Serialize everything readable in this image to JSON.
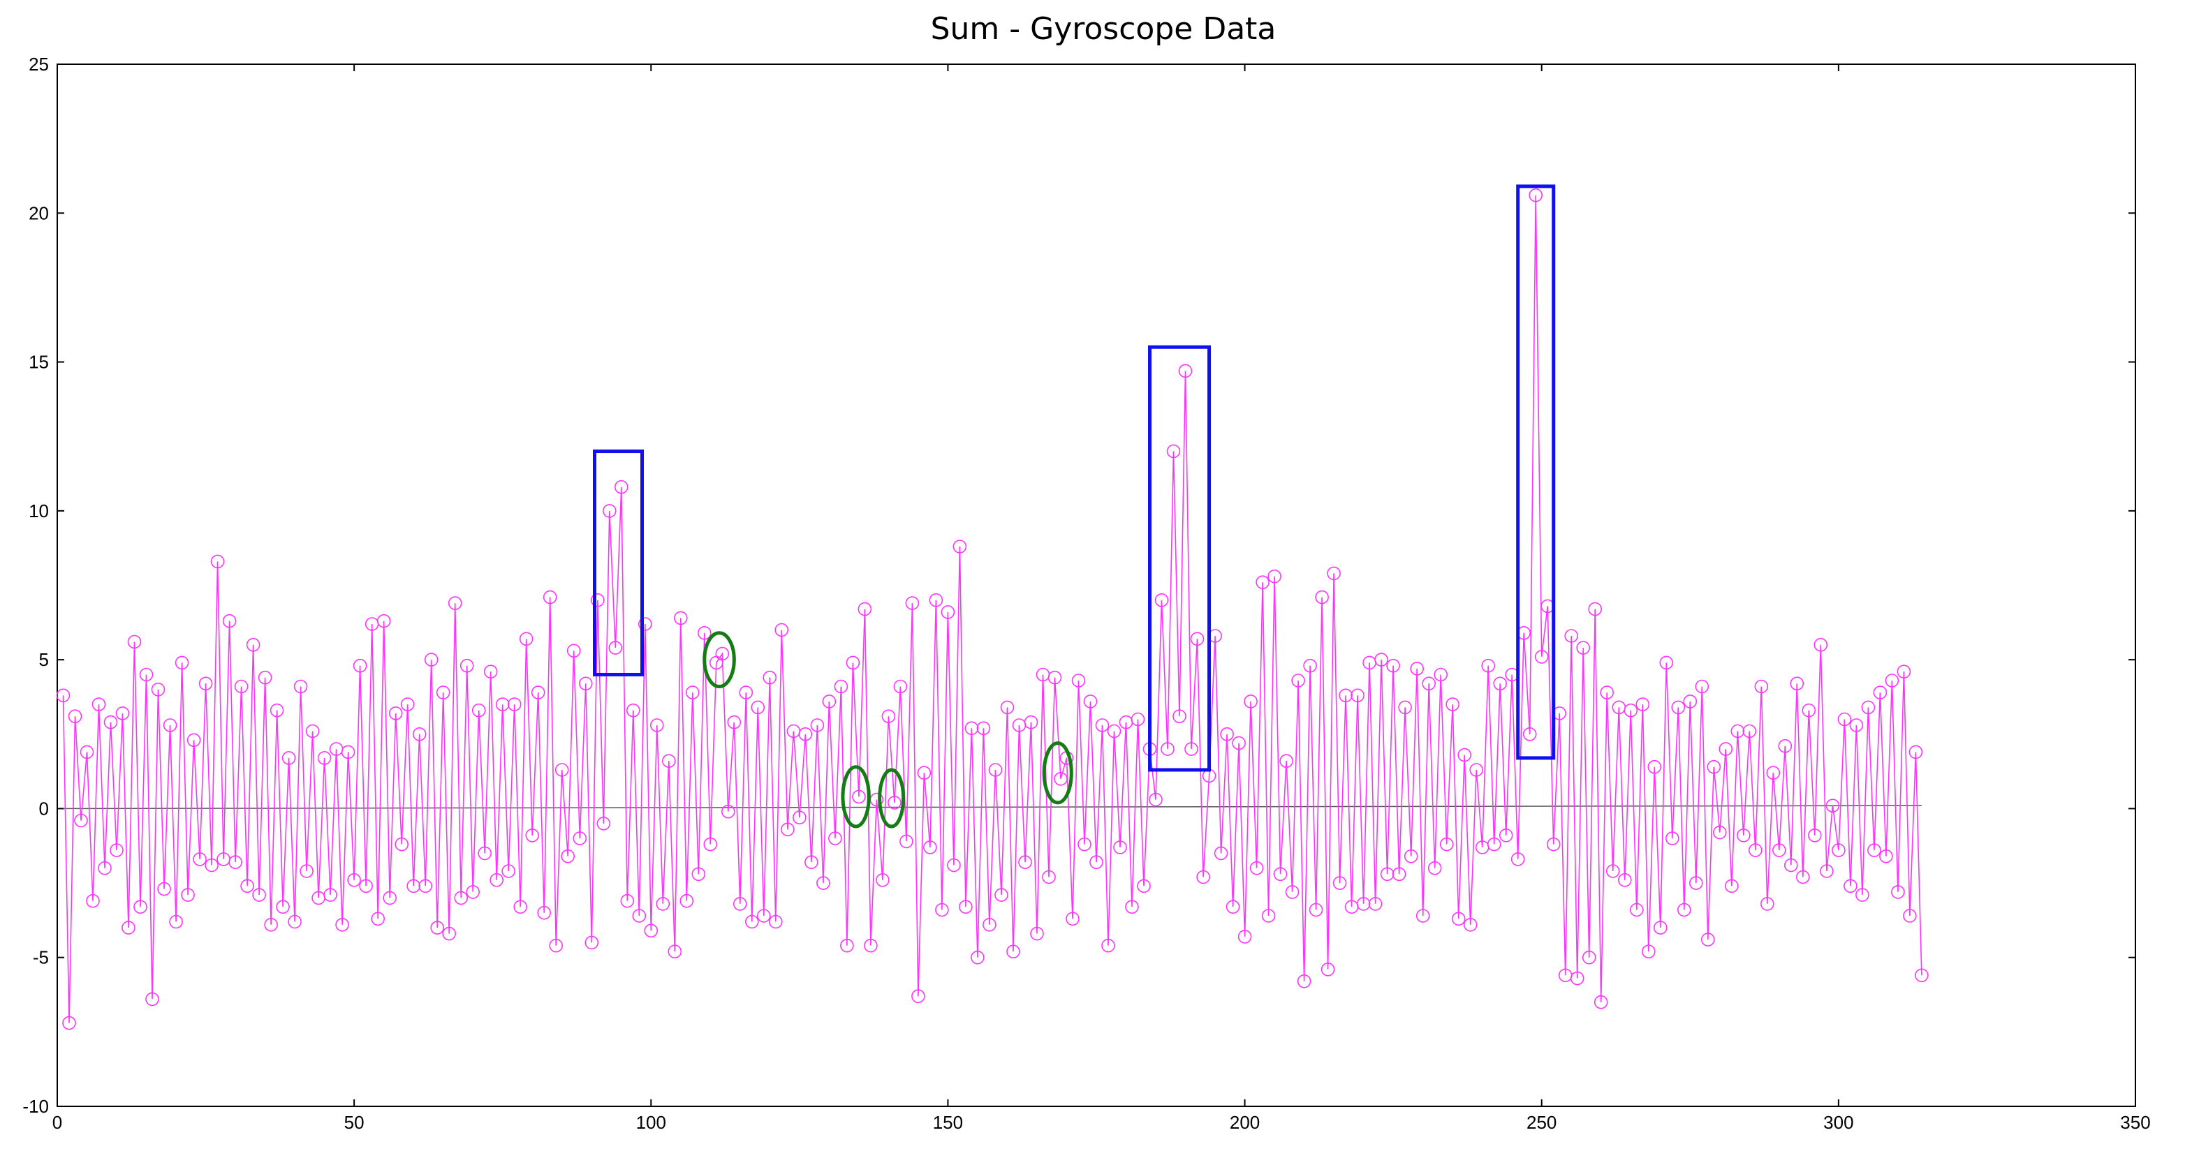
{
  "chart_data": {
    "type": "line",
    "title": "Sum - Gyroscope Data",
    "xlabel": "",
    "ylabel": "",
    "xlim": [
      0,
      350
    ],
    "ylim": [
      -10,
      25
    ],
    "xticks": [
      0,
      50,
      100,
      150,
      200,
      250,
      300,
      350
    ],
    "yticks": [
      -10,
      -5,
      0,
      5,
      10,
      15,
      20,
      25
    ],
    "grid": false,
    "legend": "none",
    "colors": {
      "series": "#ff33ff",
      "baseline": "#555555",
      "highlight_box": "#1010ee",
      "highlight_ellipse": "#137c13",
      "axis": "#000000"
    },
    "series": [
      {
        "marker": "circle",
        "x_start": 1,
        "x_step": 1,
        "values": [
          3.8,
          -7.2,
          3.1,
          -0.4,
          1.9,
          -3.1,
          3.5,
          -2.0,
          2.9,
          -1.4,
          3.2,
          -4.0,
          5.6,
          -3.3,
          4.5,
          -6.4,
          4.0,
          -2.7,
          2.8,
          -3.8,
          4.9,
          -2.9,
          2.3,
          -1.7,
          4.2,
          -1.9,
          8.3,
          -1.7,
          6.3,
          -1.8,
          4.1,
          -2.6,
          5.5,
          -2.9,
          4.4,
          -3.9,
          3.3,
          -3.3,
          1.7,
          -3.8,
          4.1,
          -2.1,
          2.6,
          -3.0,
          1.7,
          -2.9,
          2.0,
          -3.9,
          1.9,
          -2.4,
          4.8,
          -2.6,
          6.2,
          -3.7,
          6.3,
          -3.0,
          3.2,
          -1.2,
          3.5,
          -2.6,
          2.5,
          -2.6,
          5.0,
          -4.0,
          3.9,
          -4.2,
          6.9,
          -3.0,
          4.8,
          -2.8,
          3.3,
          -1.5,
          4.6,
          -2.4,
          3.5,
          -2.1,
          3.5,
          -3.3,
          5.7,
          -0.9,
          3.9,
          -3.5,
          7.1,
          -4.6,
          1.3,
          -1.6,
          5.3,
          -1.0,
          4.2,
          -4.5,
          7.0,
          -0.5,
          10.0,
          5.4,
          10.8,
          -3.1,
          3.3,
          -3.6,
          6.2,
          -4.1,
          2.8,
          -3.2,
          1.6,
          -4.8,
          6.4,
          -3.1,
          3.9,
          -2.2,
          5.9,
          -1.2,
          4.9,
          5.2,
          -0.1,
          2.9,
          -3.2,
          3.9,
          -3.8,
          3.4,
          -3.6,
          4.4,
          -3.8,
          6.0,
          -0.7,
          2.6,
          -0.3,
          2.5,
          -1.8,
          2.8,
          -2.5,
          3.6,
          -1.0,
          4.1,
          -4.6,
          4.9,
          0.4,
          6.7,
          -4.6,
          0.3,
          -2.4,
          3.1,
          0.2,
          4.1,
          -1.1,
          6.9,
          -6.3,
          1.2,
          -1.3,
          7.0,
          -3.4,
          6.6,
          -1.9,
          8.8,
          -3.3,
          2.7,
          -5.0,
          2.7,
          -3.9,
          1.3,
          -2.9,
          3.4,
          -4.8,
          2.8,
          -1.8,
          2.9,
          -4.2,
          4.5,
          -2.3,
          4.4,
          1.0,
          1.7,
          -3.7,
          4.3,
          -1.2,
          3.6,
          -1.8,
          2.8,
          -4.6,
          2.6,
          -1.3,
          2.9,
          -3.3,
          3.0,
          -2.6,
          2.0,
          0.3,
          7.0,
          2.0,
          12.0,
          3.1,
          14.7,
          2.0,
          5.7,
          -2.3,
          1.1,
          5.8,
          -1.5,
          2.5,
          -3.3,
          2.2,
          -4.3,
          3.6,
          -2.0,
          7.6,
          -3.6,
          7.8,
          -2.2,
          1.6,
          -2.8,
          4.3,
          -5.8,
          4.8,
          -3.4,
          7.1,
          -5.4,
          7.9,
          -2.5,
          3.8,
          -3.3,
          3.8,
          -3.2,
          4.9,
          -3.2,
          5.0,
          -2.2,
          4.8,
          -2.2,
          3.4,
          -1.6,
          4.7,
          -3.6,
          4.2,
          -2.0,
          4.5,
          -1.2,
          3.5,
          -3.7,
          1.8,
          -3.9,
          1.3,
          -1.3,
          4.8,
          -1.2,
          4.2,
          -0.9,
          4.5,
          -1.7,
          5.9,
          2.5,
          20.6,
          5.1,
          6.8,
          -1.2,
          3.2,
          -5.6,
          5.8,
          -5.7,
          5.4,
          -5.0,
          6.7,
          -6.5,
          3.9,
          -2.1,
          3.4,
          -2.4,
          3.3,
          -3.4,
          3.5,
          -4.8,
          1.4,
          -4.0,
          4.9,
          -1.0,
          3.4,
          -3.4,
          3.6,
          -2.5,
          4.1,
          -4.4,
          1.4,
          -0.8,
          2.0,
          -2.6,
          2.6,
          -0.9,
          2.6,
          -1.4,
          4.1,
          -3.2,
          1.2,
          -1.4,
          2.1,
          -1.9,
          4.2,
          -2.3,
          3.3,
          -0.9,
          5.5,
          -2.1,
          0.1,
          -1.4,
          3.0,
          -2.6,
          2.8,
          -2.9,
          3.4,
          -1.4,
          3.9,
          -1.6,
          4.3,
          -2.8,
          4.6,
          -3.6,
          1.9,
          -5.6
        ]
      }
    ],
    "baseline": {
      "y_start": 0.0,
      "y_end": 0.1
    },
    "highlights": {
      "boxes": [
        {
          "x": [
            90.5,
            98.5
          ],
          "y": [
            4.5,
            12.0
          ]
        },
        {
          "x": [
            184,
            194
          ],
          "y": [
            1.3,
            15.5
          ]
        },
        {
          "x": [
            246,
            252
          ],
          "y": [
            1.7,
            20.9
          ]
        }
      ],
      "ellipses": [
        {
          "cx": 111.5,
          "cy": 5.0,
          "rx": 2.5,
          "ry": 0.9
        },
        {
          "cx": 134.5,
          "cy": 0.4,
          "rx": 2.2,
          "ry": 1.0
        },
        {
          "cx": 140.5,
          "cy": 0.35,
          "rx": 2.0,
          "ry": 0.95
        },
        {
          "cx": 168.5,
          "cy": 1.2,
          "rx": 2.3,
          "ry": 1.0
        }
      ]
    }
  }
}
